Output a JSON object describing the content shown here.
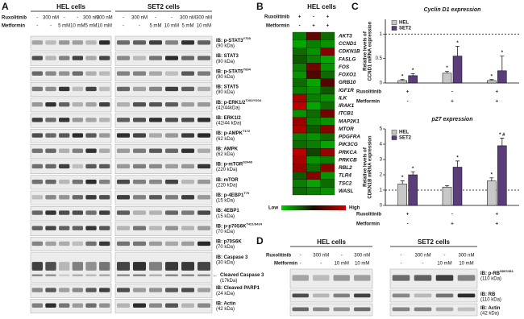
{
  "panels": {
    "A": "A",
    "B": "B",
    "C": "C",
    "D": "D"
  },
  "panel_a": {
    "cells": [
      "HEL cells",
      "SET2 cells"
    ],
    "row_labels": [
      "Ruxolitinib",
      "Metformin"
    ],
    "ruxolitinib": [
      "-",
      "300 nM",
      "-",
      "-",
      "300 nM",
      "300 nM"
    ],
    "metformin": [
      "-",
      "-",
      "5 mM",
      "10 mM",
      "5 mM",
      "10 mM"
    ],
    "blots": [
      {
        "label": "IB: p-STAT3",
        "sup": "Y705",
        "kda": "(90 kDa)"
      },
      {
        "label": "IB: STAT3",
        "kda": "(90 kDa)"
      },
      {
        "label": "IB: p-STAT5",
        "sup": "Y694",
        "kda": "(90 kDa)"
      },
      {
        "label": "IB: STAT5",
        "kda": "(90 kDa)"
      },
      {
        "label": "IB: p-ERK1/2",
        "sup": "T202/Y204",
        "kda": "(42/44kDa)"
      },
      {
        "label": "IB: ERK1/2",
        "kda": "(42/44 kDa)"
      },
      {
        "label": "IB: p-AMPK",
        "sup": "T172",
        "kda": "(62 kDa)"
      },
      {
        "label": "IB: AMPK",
        "kda": "(62 kDa)"
      },
      {
        "label": "IB: p-mTOR",
        "sup": "S2448",
        "kda": "(220 kDa)"
      },
      {
        "label": "IB: mTOR",
        "kda": "(220 kDa)"
      },
      {
        "label": "IB: p-4EBP1",
        "sup": "T70",
        "kda": "(15 kDa)"
      },
      {
        "label": "IB: 4EBP1",
        "kda": "(15 kDa)"
      },
      {
        "label": "IB: p-p70S6K",
        "sup": "T421/S424",
        "kda": "(70 kDa)"
      },
      {
        "label": "IB: p70S6K",
        "kda": "(70 kDa)"
      },
      {
        "label": "IB: Caspase 3",
        "kda": "(30 kDa)",
        "sub_label": "Cleaved Caspase 3",
        "sub_kda": "(17kDa)"
      },
      {
        "label": "IB: Cleaved PARP1",
        "kda": "(24 kDa)"
      },
      {
        "label": "IB: Actin",
        "kda": "(42 kDa)"
      }
    ]
  },
  "panel_d": {
    "cells": [
      "HEL cells",
      "SET2 cells"
    ],
    "row_labels": [
      "Ruxolitinib",
      "Metformin"
    ],
    "ruxolitinib": [
      "-",
      "300 nM",
      "-",
      "300 nM"
    ],
    "metformin": [
      "-",
      "-",
      "10 mM",
      "10 mM"
    ],
    "blots": [
      {
        "label": "IB: p-RB",
        "sup": "S807/811",
        "kda": "(110 kDa)"
      },
      {
        "label": "IB: RB",
        "kda": "(110 kDa)"
      },
      {
        "label": "IB: Actin",
        "kda": "(42 kDa)"
      }
    ]
  },
  "chart_data": [
    {
      "type": "heatmap",
      "title": "HEL cells",
      "conditions": [
        {
          "name": "Ruxolitinib",
          "values": [
            "+",
            "-",
            "+"
          ]
        },
        {
          "name": "Metformin",
          "values": [
            "-",
            "+",
            "+"
          ]
        }
      ],
      "genes": [
        "AKT3",
        "CCND1",
        "CDKN1B",
        "FASLG",
        "FOS",
        "FOXO1",
        "GRB10",
        "IGF1R",
        "ILK",
        "IRAK1",
        "ITCB1",
        "MAP2K1",
        "MTOR",
        "PDGFRA",
        "PIK3CG",
        "PRKCA",
        "PRKCB",
        "RBL2",
        "TLR4",
        "TSC2",
        "WASL"
      ],
      "values": [
        [
          -0.6,
          0.4,
          -0.5
        ],
        [
          -0.8,
          -0.6,
          -0.7
        ],
        [
          -0.5,
          -0.7,
          0.6
        ],
        [
          -0.4,
          -0.6,
          -0.8
        ],
        [
          -0.6,
          0.5,
          -0.7
        ],
        [
          -0.7,
          0.3,
          -0.5
        ],
        [
          -0.5,
          -0.8,
          0.3
        ],
        [
          -0.6,
          -0.7,
          -0.4
        ],
        [
          0.8,
          -0.6,
          -0.7
        ],
        [
          0.9,
          -0.8,
          -0.5
        ],
        [
          -0.7,
          -0.5,
          0.5
        ],
        [
          0.7,
          -0.6,
          -0.7
        ],
        [
          0.8,
          -0.4,
          0.6
        ],
        [
          -0.6,
          -0.7,
          -0.5
        ],
        [
          -0.5,
          -0.6,
          -0.8
        ],
        [
          0.9,
          -0.3,
          0.7
        ],
        [
          0.8,
          -0.7,
          -0.6
        ],
        [
          0.7,
          -0.5,
          0.6
        ],
        [
          -0.4,
          0.6,
          -0.7
        ],
        [
          -0.6,
          -0.8,
          -0.5
        ],
        [
          -0.5,
          -0.6,
          -0.7
        ]
      ],
      "range": [
        -1,
        1
      ],
      "low_color": "#00cc00",
      "mid_color": "#1a0a00",
      "high_color": "#cc0000",
      "legend_low": "Low",
      "legend_high": "High"
    },
    {
      "type": "bar",
      "title": "Cyclin D1 expression",
      "ylabel": [
        "Relative levels of",
        "CCND1 mRNA expression"
      ],
      "conditions": [
        {
          "name": "Ruxolitinib",
          "values": [
            "+",
            "-",
            "+"
          ]
        },
        {
          "name": "Metformin",
          "values": [
            "-",
            "+",
            "+"
          ]
        }
      ],
      "series": [
        {
          "name": "HEL",
          "color": "#c8c8c8",
          "values": [
            0.05,
            0.2,
            0.05
          ],
          "errors": [
            0.02,
            0.04,
            0.02
          ],
          "annotations": [
            "*",
            "*",
            "*"
          ]
        },
        {
          "name": "SET2",
          "color": "#5a3d7a",
          "values": [
            0.15,
            0.55,
            0.25
          ],
          "errors": [
            0.04,
            0.2,
            0.3
          ],
          "annotations": [
            "*",
            "*",
            "*"
          ]
        }
      ],
      "reference": 1,
      "ylim": [
        0,
        1.3
      ],
      "yticks": [
        0,
        0.5,
        1
      ]
    },
    {
      "type": "bar",
      "title": "p27 expression",
      "ylabel": [
        "Relative levels of",
        "CDKN1B mRNA expression"
      ],
      "conditions": [
        {
          "name": "Ruxolitinib",
          "values": [
            "+",
            "-",
            "+"
          ]
        },
        {
          "name": "Metformin",
          "values": [
            "-",
            "+",
            "+"
          ]
        }
      ],
      "series": [
        {
          "name": "HEL",
          "color": "#c8c8c8",
          "values": [
            1.4,
            1.2,
            1.6
          ],
          "errors": [
            0.2,
            0.1,
            0.2
          ],
          "annotations": [
            "*",
            "",
            "*"
          ]
        },
        {
          "name": "SET2",
          "color": "#5a3d7a",
          "values": [
            2.0,
            2.5,
            3.9
          ],
          "errors": [
            0.2,
            0.4,
            0.5
          ],
          "annotations": [
            "*",
            "*",
            "* #"
          ]
        }
      ],
      "reference": 1,
      "ylim": [
        0,
        5
      ],
      "yticks": [
        0,
        1,
        2,
        3,
        4,
        5
      ]
    }
  ]
}
